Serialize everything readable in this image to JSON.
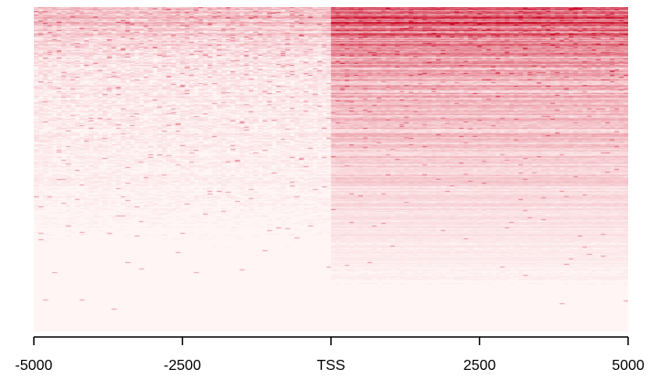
{
  "chart_data": {
    "type": "heatmap",
    "title": "",
    "xlabel": "",
    "ylabel": "",
    "x_range": [
      -5000,
      5000
    ],
    "x_ticks": [
      {
        "value": -5000,
        "label": "-5000"
      },
      {
        "value": -2500,
        "label": "-2500"
      },
      {
        "value": 0,
        "label": "TSS"
      },
      {
        "value": 2500,
        "label": "2500"
      },
      {
        "value": 5000,
        "label": "5000"
      }
    ],
    "center": 0,
    "rows_sorted": "descending signal",
    "colors": {
      "low": "#fff5f5",
      "high": "#c8001e"
    },
    "profile": {
      "upstream_mean": 0.12,
      "downstream_mean": 0.55,
      "top_rows_boost": 0.35
    }
  }
}
